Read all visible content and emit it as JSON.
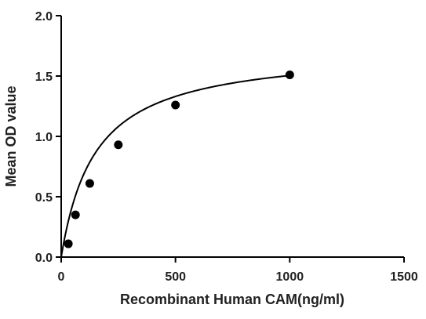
{
  "chart_data": {
    "type": "scatter",
    "title": "",
    "xlabel": "Recombinant Human CAM(ng/ml)",
    "ylabel": "Mean OD value",
    "xlim": [
      0,
      1500
    ],
    "ylim": [
      0,
      2.0
    ],
    "x_ticks": [
      "0",
      "500",
      "1000",
      "1500"
    ],
    "y_ticks": [
      "0.0",
      "0.5",
      "1.0",
      "1.5",
      "2.0"
    ],
    "x_tick_values": [
      0,
      500,
      1000,
      1500
    ],
    "y_tick_values": [
      0,
      0.5,
      1.0,
      1.5,
      2.0
    ],
    "grid": false,
    "series": [
      {
        "x": [
          31.25,
          62.5,
          125,
          250,
          500,
          1000
        ],
        "y": [
          0.11,
          0.35,
          0.61,
          0.93,
          1.26,
          1.51
        ],
        "color": "#000000"
      }
    ],
    "fit_curve": {
      "type": "hyperbola",
      "x_range": [
        0,
        1000
      ],
      "ymax": 1.73,
      "k": 150
    }
  }
}
